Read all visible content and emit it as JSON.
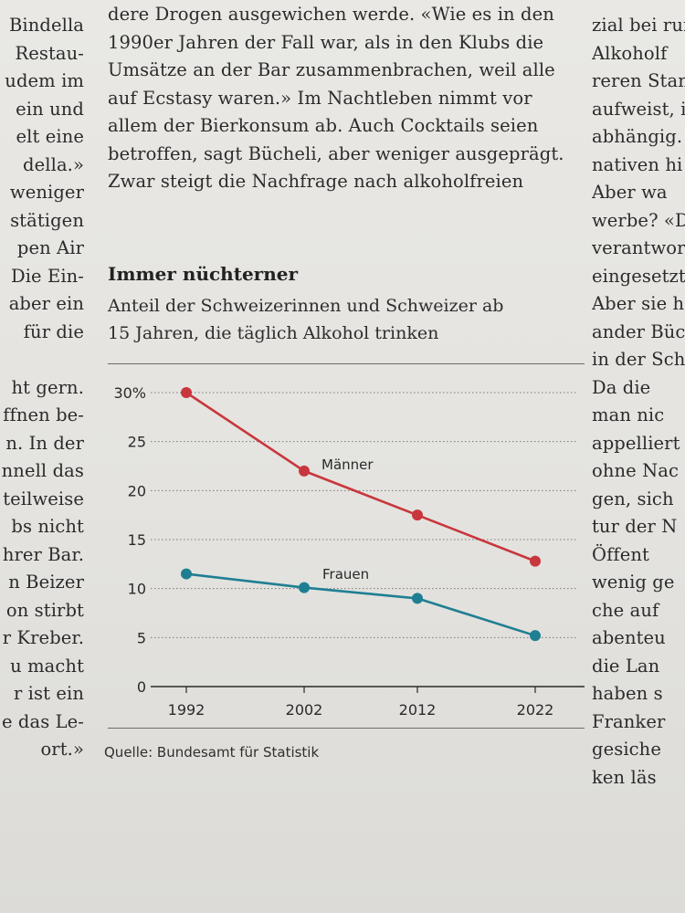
{
  "article": {
    "left_column": [
      "Bindella",
      "Restau-",
      "udem im",
      "ein und",
      "elt eine",
      "della.»",
      "weniger",
      "stätigen",
      "pen Air",
      "Die Ein-",
      "aber ein",
      "für die",
      "",
      "ht gern.",
      "ffnen be-",
      "n. In der",
      "nnell das",
      "teilweise",
      "bs nicht",
      "hrer Bar.",
      "n Beizer",
      "on stirbt",
      "r Kreber.",
      "u macht",
      "r ist ein",
      "e das Le-",
      "ort.»"
    ],
    "middle_column": [
      "dere Drogen ausgewichen werde. «Wie es in den",
      "1990er Jahren der Fall war, als in den Klubs die",
      "Umsätze an der Bar zusammenbrachen, weil alle",
      "auf Ecstasy waren.» Im Nachtleben nimmt vor",
      "allem der Bierkonsum ab. Auch Cocktails seien",
      "betroffen, sagt Bücheli, aber weniger ausgeprägt.",
      "Zwar steigt die Nachfrage nach alkoholfreien"
    ],
    "right_column": [
      "zial bei run",
      "Alkoholf",
      "reren Stan",
      "aufweist, is",
      "abhängig.",
      "nativen hi",
      "Aber wa",
      "werbe? «D",
      "verantwor",
      "eingesetzt",
      "Aber sie h",
      "ander Büc",
      "in der Sch",
      "Da die",
      "man nic",
      "appelliert",
      "ohne Nac",
      "gen, sich",
      "tur der N",
      "Öffent",
      "wenig ge",
      "che auf",
      "abenteu",
      "die Lan",
      "haben s",
      "Franker",
      "gesiche",
      "ken läs"
    ]
  },
  "chart": {
    "title": "Immer nüchterner",
    "subtitle_line1": "Anteil der Schweizerinnen und Schweizer ab",
    "subtitle_line2": "15 Jahren, die täglich Alkohol trinken",
    "source": "Quelle: Bundesamt für Statistik",
    "colors": {
      "men": "#c8373d",
      "women": "#1f7f92"
    }
  },
  "chart_data": {
    "type": "line",
    "title": "Immer nüchterner",
    "subtitle": "Anteil der Schweizerinnen und Schweizer ab 15 Jahren, die täglich Alkohol trinken",
    "x": [
      1992,
      2002,
      2012,
      2022
    ],
    "x_tick_labels": [
      "1992",
      "2002",
      "2012",
      "2022"
    ],
    "y_tick_labels": [
      "30%",
      "25",
      "20",
      "15",
      "10",
      "5",
      "0"
    ],
    "y_ticks": [
      30,
      25,
      20,
      15,
      10,
      5,
      0
    ],
    "ylim": [
      0,
      30
    ],
    "grid": "horizontal-dotted",
    "series": [
      {
        "name": "Männer",
        "values": [
          30.0,
          22.0,
          17.5,
          12.8
        ]
      },
      {
        "name": "Frauen",
        "values": [
          11.5,
          10.1,
          9.0,
          5.2
        ]
      }
    ],
    "source": "Quelle: Bundesamt für Statistik"
  }
}
